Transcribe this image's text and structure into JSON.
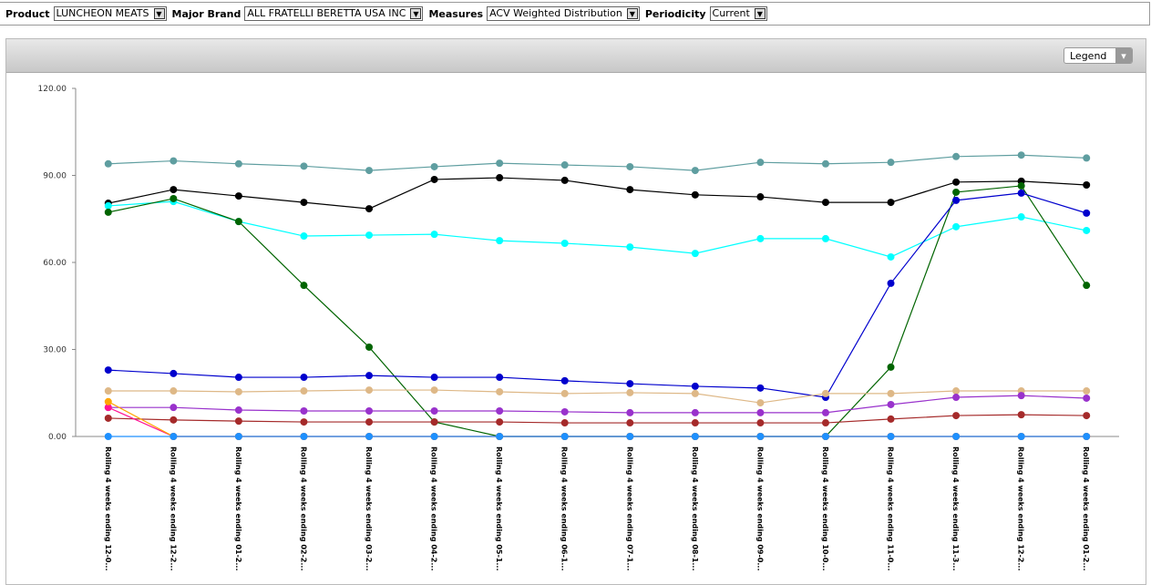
{
  "filters": [
    {
      "label": "Product",
      "value": "LUNCHEON MEATS"
    },
    {
      "label": "Major Brand",
      "value": "ALL FRATELLI BERETTA USA INC"
    },
    {
      "label": "Measures",
      "value": "ACV Weighted Distribution"
    },
    {
      "label": "Periodicity",
      "value": "Current"
    }
  ],
  "legend_button": "Legend",
  "chart_data": {
    "type": "line",
    "categories": [
      "Rolling 4 weeks ending 12-0...",
      "Rolling 4 weeks ending 12-2...",
      "Rolling 4 weeks ending 01-2...",
      "Rolling 4 weeks ending 02-2...",
      "Rolling 4 weeks ending 03-2...",
      "Rolling 4 weeks ending 04-2...",
      "Rolling 4 weeks ending 05-1...",
      "Rolling 4 weeks ending 06-1...",
      "Rolling 4 weeks ending 07-1...",
      "Rolling 4 weeks ending 08-1...",
      "Rolling 4 weeks ending 09-0...",
      "Rolling 4 weeks ending 10-0...",
      "Rolling 4 weeks ending 11-0...",
      "Rolling 4 weeks ending 11-3...",
      "Rolling 4 weeks ending 12-2...",
      "Rolling 4 weeks ending 01-2..."
    ],
    "ylim": [
      0,
      120
    ],
    "yticks": [
      {
        "value": 0,
        "label": "0.00"
      },
      {
        "value": 30,
        "label": "30.00"
      },
      {
        "value": 60,
        "label": "60.00"
      },
      {
        "value": 90,
        "label": "90.00"
      },
      {
        "value": 120,
        "label": "120.00"
      }
    ],
    "grid": false,
    "series": [
      {
        "color": "#5f9ea0",
        "values": [
          94,
          95,
          94,
          93.2,
          91.7,
          93,
          94.2,
          93.6,
          93,
          91.7,
          94.5,
          94,
          94.5,
          96.5,
          97,
          96
        ]
      },
      {
        "color": "#000000",
        "values": [
          80.4,
          85.1,
          82.9,
          80.7,
          78.5,
          88.6,
          89.2,
          88.3,
          85.1,
          83.3,
          82.6,
          80.7,
          80.7,
          87.7,
          88,
          86.7
        ]
      },
      {
        "color": "#00ffff",
        "values": [
          79.5,
          81,
          74.1,
          69.1,
          69.4,
          69.7,
          67.5,
          66.6,
          65.3,
          63.1,
          68.2,
          68.2,
          61.9,
          72.3,
          75.7,
          71
        ]
      },
      {
        "color": "#006400",
        "values": [
          77.3,
          82,
          74.1,
          52.1,
          30.8,
          5,
          0,
          0,
          0,
          0,
          0,
          0,
          23.9,
          84.2,
          86.4,
          52.1
        ]
      },
      {
        "color": "#0000cd",
        "values": [
          22.9,
          21.7,
          20.4,
          20.4,
          21,
          20.4,
          20.4,
          19.2,
          18.2,
          17.3,
          16.7,
          13.5,
          52.8,
          81.4,
          83.9,
          77
        ]
      },
      {
        "color": "#deb887",
        "values": [
          15.7,
          15.7,
          15.4,
          15.7,
          16,
          16,
          15.4,
          14.8,
          15.1,
          14.8,
          11.6,
          14.8,
          14.8,
          15.7,
          15.7,
          15.7
        ]
      },
      {
        "color": "#9932cc",
        "values": [
          10,
          10,
          9.1,
          8.8,
          8.8,
          8.8,
          8.8,
          8.5,
          8.2,
          8.2,
          8.2,
          8.2,
          11,
          13.5,
          14.1,
          13.2
        ]
      },
      {
        "color": "#a52a2a",
        "values": [
          6.3,
          5.7,
          5.3,
          5,
          5,
          5,
          5,
          4.7,
          4.7,
          4.7,
          4.7,
          4.7,
          6,
          7.2,
          7.5,
          7.2
        ]
      },
      {
        "color": "#ff1493",
        "values": [
          10,
          0,
          0,
          0,
          0,
          0,
          0,
          0,
          0,
          0,
          0,
          0,
          0,
          0,
          0,
          0
        ]
      },
      {
        "color": "#ffa500",
        "values": [
          12,
          0,
          0,
          0,
          0,
          0,
          0,
          0,
          0,
          0,
          0,
          0,
          0,
          0,
          0,
          0
        ]
      },
      {
        "color": "#1e90ff",
        "values": [
          0,
          0,
          0,
          0,
          0,
          0,
          0,
          0,
          0,
          0,
          0,
          0,
          0,
          0,
          0,
          0
        ]
      }
    ]
  }
}
